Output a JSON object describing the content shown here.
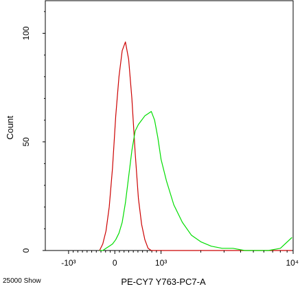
{
  "chart_data": {
    "type": "line",
    "title": "",
    "xlabel": "PE-CY7 Y763-PC7-A",
    "ylabel": "Count",
    "x_scale": "biexponential",
    "x_tick_labels": [
      "-10³",
      "0",
      "10³",
      "10⁴"
    ],
    "x_tick_values": [
      -1000,
      0,
      1000,
      10000
    ],
    "y_tick_labels": [
      "0",
      "50",
      "100"
    ],
    "y_tick_values": [
      0,
      50,
      100
    ],
    "xlim": [
      -1500,
      10000
    ],
    "ylim": [
      0,
      115
    ],
    "grid": false,
    "legend": "none",
    "x": [
      -330,
      -260,
      -190,
      -120,
      -50,
      20,
      90,
      160,
      230,
      300,
      370,
      440,
      510,
      580,
      650,
      720,
      790,
      860,
      930,
      1000,
      1100,
      1250,
      1450,
      1700,
      2000,
      2400,
      2900,
      3500,
      4300,
      5300,
      6500,
      8000,
      9800
    ],
    "series": [
      {
        "color": "#cc0000",
        "values": [
          0,
          3,
          9,
          20,
          38,
          62,
          80,
          92,
          96,
          88,
          70,
          45,
          24,
          12,
          5,
          1,
          0,
          0,
          0,
          0,
          0,
          0,
          0,
          0,
          0,
          0,
          0,
          0,
          0,
          0,
          0,
          0,
          0
        ]
      },
      {
        "color": "#00dd00",
        "values": [
          0,
          0,
          1,
          2,
          3,
          5,
          8,
          13,
          22,
          34,
          46,
          55,
          58,
          60,
          62,
          63,
          64,
          60,
          52,
          42,
          32,
          21,
          13,
          7,
          4,
          2,
          1,
          1,
          0,
          0,
          0,
          1,
          6
        ]
      }
    ],
    "annotations": [
      "25000 Show"
    ]
  }
}
